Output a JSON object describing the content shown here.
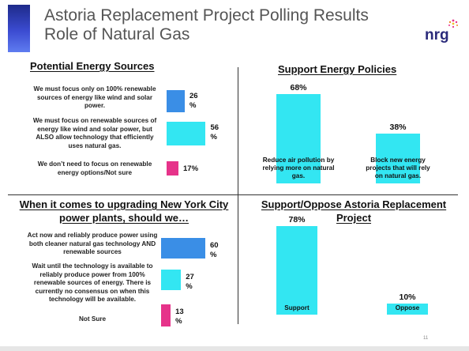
{
  "slide": {
    "title_line1": "Astoria Replacement Project Polling Results",
    "title_line2": "Role of Natural Gas",
    "logo_text": "nrg",
    "page_number": "11"
  },
  "colors": {
    "accent": "#2a3aa8",
    "blue": "#3a8ee6",
    "cyan": "#33e6f2",
    "magenta": "#e6338a"
  },
  "chart_data": [
    {
      "type": "bar",
      "orientation": "horizontal",
      "title": "Potential Energy Sources",
      "categories": [
        "We must focus only on 100% renewable sources of energy like wind and solar power.",
        "We must focus on renewable sources of energy like wind and solar power, but ALSO allow technology that efficiently uses natural gas.",
        "We don’t need to focus on renewable energy options/Not sure"
      ],
      "values": [
        26,
        56,
        17
      ],
      "value_labels": [
        "26 %",
        "56 %",
        "17%"
      ],
      "colors": [
        "#3a8ee6",
        "#33e6f2",
        "#e6338a"
      ],
      "xlim": [
        0,
        60
      ]
    },
    {
      "type": "bar",
      "orientation": "vertical",
      "title": "Support Energy Policies",
      "categories": [
        "Reduce air pollution by relying more on natural gas.",
        "Block new energy projects that will rely on natural gas."
      ],
      "values": [
        68,
        38
      ],
      "value_labels": [
        "68%",
        "38%"
      ],
      "colors": [
        "#33e6f2",
        "#33e6f2"
      ],
      "ylim": [
        0,
        80
      ]
    },
    {
      "type": "bar",
      "orientation": "horizontal",
      "title": "When it comes to upgrading New York City power plants, should we…",
      "categories": [
        {
          "bold": "Act now",
          "rest": " and reliably produce power using both cleaner natural gas technology AND renewable sources"
        },
        {
          "bold": "Wait until the technology is available",
          "rest": " to reliably produce power from 100% renewable sources of energy. There is currently no consensus on when this technology will be available."
        },
        {
          "bold": "Not Sure",
          "rest": ""
        }
      ],
      "values": [
        60,
        27,
        13
      ],
      "value_labels": [
        "60 %",
        "27 %",
        "13 %"
      ],
      "colors": [
        "#3a8ee6",
        "#33e6f2",
        "#e6338a"
      ],
      "xlim": [
        0,
        60
      ]
    },
    {
      "type": "bar",
      "orientation": "vertical",
      "title": "Support/Oppose Astoria Replacement Project",
      "categories": [
        "Support",
        "Oppose"
      ],
      "values": [
        78,
        10
      ],
      "value_labels": [
        "78%",
        "10%"
      ],
      "colors": [
        "#33e6f2",
        "#33e6f2"
      ],
      "ylim": [
        0,
        80
      ]
    }
  ]
}
